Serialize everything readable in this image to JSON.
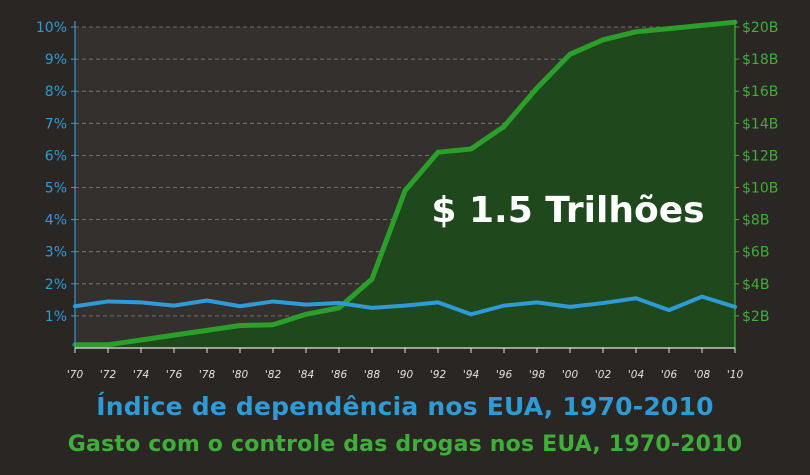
{
  "chart_data": {
    "type": "line",
    "title": "Índice de dependência nos EUA, 1970-2010",
    "subtitle": "Gasto com o controle das drogas nos EUA, 1970-2010",
    "annotation": "$ 1.5 Trilhões",
    "x": [
      1970,
      1972,
      1974,
      1976,
      1978,
      1980,
      1982,
      1984,
      1986,
      1988,
      1990,
      1992,
      1994,
      1996,
      1998,
      2000,
      2002,
      2004,
      2006,
      2008,
      2010
    ],
    "x_tick_labels": [
      "'70",
      "'72",
      "'74",
      "'76",
      "'78",
      "'80",
      "'82",
      "'84",
      "'86",
      "'88",
      "'90",
      "'92",
      "'94",
      "'96",
      "'98",
      "'00",
      "'02",
      "'04",
      "'06",
      "'08",
      "'10"
    ],
    "y_left": {
      "ylim": [
        0,
        10
      ],
      "ticks": [
        1,
        2,
        3,
        4,
        5,
        6,
        7,
        8,
        9,
        10
      ],
      "tick_labels": [
        "1%",
        "2%",
        "3%",
        "4%",
        "5%",
        "6%",
        "7%",
        "8%",
        "9%",
        "10%"
      ],
      "color": "#2f9bd6"
    },
    "y_right": {
      "ylim": [
        0,
        20
      ],
      "ticks": [
        2,
        4,
        6,
        8,
        10,
        12,
        14,
        16,
        18,
        20
      ],
      "tick_labels": [
        "$2B",
        "$4B",
        "$6B",
        "$8B",
        "$10B",
        "$12B",
        "$14B",
        "$16B",
        "$18B",
        "$20B"
      ],
      "color": "#3fae3a"
    },
    "grid": true,
    "series": [
      {
        "axis": "left",
        "color": "#2f9bd6",
        "values": [
          1.3,
          1.45,
          1.42,
          1.32,
          1.48,
          1.3,
          1.45,
          1.35,
          1.4,
          1.25,
          1.32,
          1.42,
          1.05,
          1.32,
          1.42,
          1.28,
          1.4,
          1.55,
          1.18,
          1.6,
          1.28
        ]
      },
      {
        "axis": "right",
        "color": "#2aa02a",
        "fill": "#1f4a1c",
        "values": [
          0.2,
          0.2,
          0.5,
          0.8,
          1.1,
          1.4,
          1.45,
          2.1,
          2.5,
          4.3,
          9.8,
          12.2,
          12.4,
          13.8,
          16.2,
          18.3,
          19.2,
          19.7,
          19.9,
          20.1,
          20.3
        ]
      }
    ]
  }
}
